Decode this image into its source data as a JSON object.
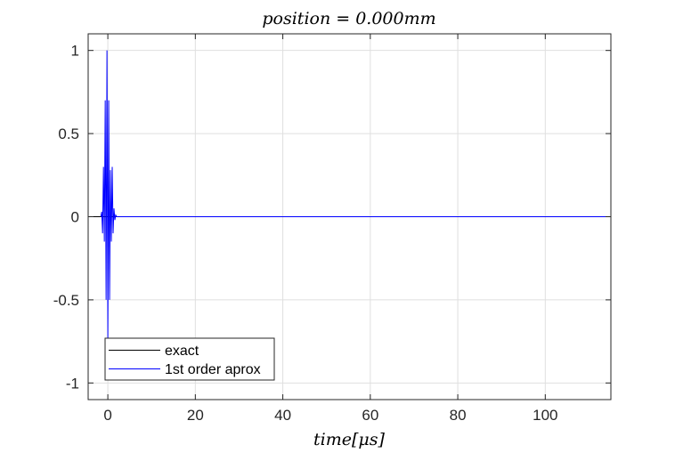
{
  "chart_data": {
    "type": "line",
    "title": "position = 0.000mm",
    "xlabel": "time[μs]",
    "ylabel": "",
    "xlim": [
      -4.5,
      115
    ],
    "ylim": [
      -1.1,
      1.1
    ],
    "xticks": [
      0,
      20,
      40,
      60,
      80,
      100
    ],
    "xtick_labels": [
      "0",
      "20",
      "40",
      "60",
      "80",
      "100"
    ],
    "yticks": [
      1,
      0.5,
      0,
      -0.5,
      -1
    ],
    "ytick_labels": [
      "1",
      "0.5",
      "0",
      "-0.5",
      "-1"
    ],
    "grid": true,
    "legend_position": "bottom-left",
    "series": [
      {
        "name": "exact",
        "color": "#000000",
        "x": [
          -4.5,
          115
        ],
        "y": [
          0,
          0
        ]
      },
      {
        "name": "1st order aprox",
        "color": "#0000ff",
        "x": [
          -1.6,
          -1.4,
          -1.2,
          -1.0,
          -0.8,
          -0.6,
          -0.4,
          -0.2,
          0.0,
          0.2,
          0.4,
          0.6,
          0.8,
          1.0,
          1.2,
          1.4,
          1.6,
          1.8,
          2.0,
          115
        ],
        "y": [
          0,
          0.03,
          -0.1,
          0.3,
          -0.15,
          0.7,
          -0.5,
          1.0,
          -0.75,
          0.7,
          -0.5,
          0.28,
          -0.15,
          0.3,
          -0.1,
          0.05,
          -0.02,
          0.01,
          0,
          0
        ]
      }
    ]
  }
}
